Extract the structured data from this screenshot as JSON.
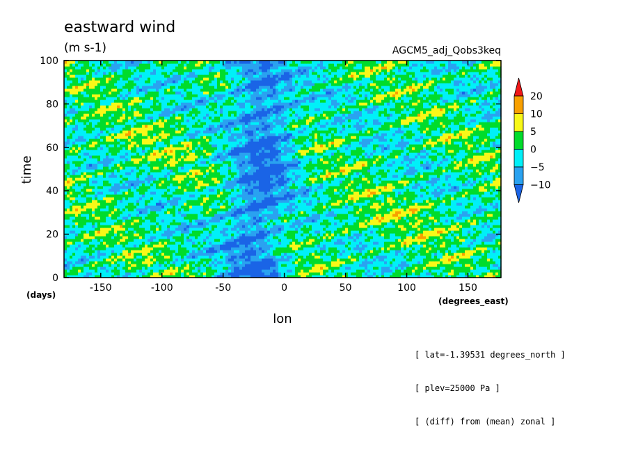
{
  "chart_data": {
    "type": "heatmap",
    "title": "eastward wind",
    "units": "(m s-1)",
    "dataset": "AGCM5_adj_Qobs3keq",
    "xlabel": "lon",
    "x_units": "(degrees_east)",
    "ylabel": "time",
    "y_units": "(days)",
    "xlim": [
      -180,
      177
    ],
    "ylim": [
      0,
      100
    ],
    "x_ticks": [
      "-150",
      "-100",
      "-50",
      "0",
      "50",
      "100",
      "150"
    ],
    "x_tick_values": [
      -150,
      -100,
      -50,
      0,
      50,
      100,
      150
    ],
    "y_ticks": [
      "0",
      "20",
      "40",
      "60",
      "80",
      "100"
    ],
    "y_tick_values": [
      0,
      20,
      40,
      60,
      80,
      100
    ],
    "colorbar": {
      "levels": [
        -10,
        -5,
        0,
        5,
        10,
        20
      ],
      "labels": [
        "20",
        "10",
        "5",
        "0",
        "−5",
        "−10"
      ],
      "colors": [
        "#1a64e6",
        "#2aa2f0",
        "#00f0f8",
        "#00dc2c",
        "#f8f818",
        "#f8a000",
        "#f01818"
      ]
    },
    "notes": [
      "[ lat=-1.39531 degrees_north ]",
      "[ plev=25000 Pa ]",
      "[ (diff) from (mean) zonal ]"
    ]
  }
}
